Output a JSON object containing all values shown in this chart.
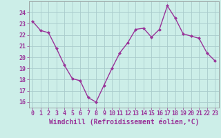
{
  "hours": [
    0,
    1,
    2,
    3,
    4,
    5,
    6,
    7,
    8,
    9,
    10,
    11,
    12,
    13,
    14,
    15,
    16,
    17,
    18,
    19,
    20,
    21,
    22,
    23
  ],
  "values": [
    23.2,
    22.4,
    22.2,
    20.8,
    19.3,
    18.1,
    17.9,
    16.4,
    16.0,
    17.5,
    19.0,
    20.4,
    21.3,
    22.5,
    22.6,
    21.8,
    22.5,
    24.6,
    23.5,
    22.1,
    21.9,
    21.7,
    20.4,
    19.7
  ],
  "line_color": "#993399",
  "marker": "D",
  "marker_size": 2.0,
  "bg_color": "#cceee8",
  "grid_color": "#aacccc",
  "ylim": [
    15.5,
    25.0
  ],
  "yticks": [
    16,
    17,
    18,
    19,
    20,
    21,
    22,
    23,
    24
  ],
  "xlabel": "Windchill (Refroidissement éolien,°C)",
  "tick_fontsize": 6.0,
  "xlabel_fontsize": 7.0,
  "line_width": 1.0
}
